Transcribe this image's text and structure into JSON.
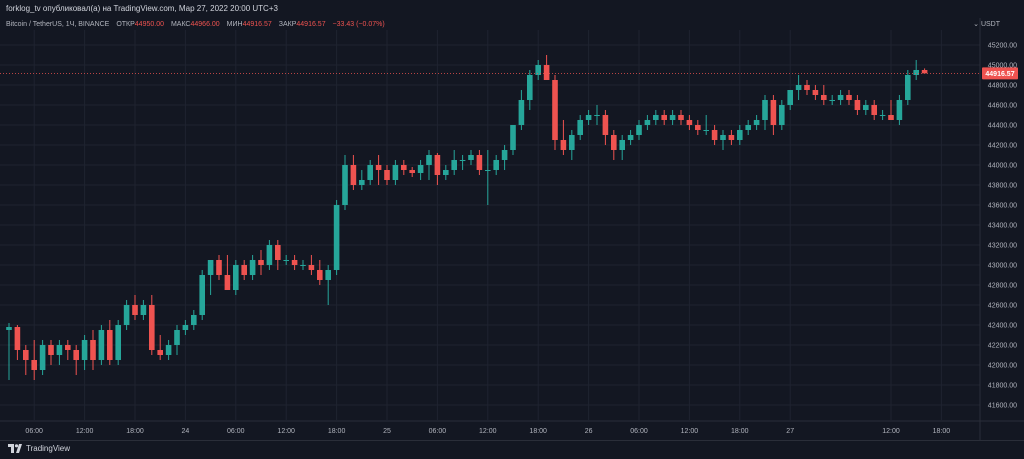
{
  "header": {
    "credit": "forklog_tv опубликовал(а) на TradingView.com, Мар 27, 2022 20:00 UTC+3",
    "symbol": "Bitcoin / TetherUS, 1Ч, BINANCE",
    "open_label": "ОТКР",
    "open_value": "44950.00",
    "high_label": "МАКС",
    "high_value": "44966.00",
    "low_label": "МИН",
    "low_value": "44916.57",
    "close_label": "ЗАКР",
    "close_value": "44916.57",
    "change": "−33.43 (−0.07%)"
  },
  "currency": "USDT",
  "brand": "TradingView",
  "colors": {
    "up": "#26a69a",
    "down": "#ef5350",
    "background": "#131722",
    "grid": "#1f2330",
    "text": "#b2b5be"
  },
  "chart_data": {
    "type": "candlestick",
    "symbol": "Bitcoin / TetherUS",
    "interval": "1Ч",
    "exchange": "BINANCE",
    "ylim": [
      41400,
      45300
    ],
    "y_ticks": [
      41600,
      41800,
      42000,
      42200,
      42400,
      42600,
      42800,
      43000,
      43200,
      43400,
      43600,
      43800,
      44000,
      44200,
      44400,
      44600,
      44800,
      45000,
      45200
    ],
    "y_tick_labels": [
      "41600.00",
      "41800.00",
      "42000.00",
      "42200.00",
      "42400.00",
      "42600.00",
      "42800.00",
      "43000.00",
      "43200.00",
      "43400.00",
      "43600.00",
      "43800.00",
      "44000.00",
      "44200.00",
      "44400.00",
      "44600.00",
      "44800.00",
      "45000.00",
      "45200.00"
    ],
    "x_ticks": [
      {
        "index": 3,
        "label": "06:00"
      },
      {
        "index": 9,
        "label": "12:00"
      },
      {
        "index": 15,
        "label": "18:00"
      },
      {
        "index": 21,
        "label": "24"
      },
      {
        "index": 27,
        "label": "06:00"
      },
      {
        "index": 33,
        "label": "12:00"
      },
      {
        "index": 39,
        "label": "18:00"
      },
      {
        "index": 45,
        "label": "25"
      },
      {
        "index": 51,
        "label": "06:00"
      },
      {
        "index": 57,
        "label": "12:00"
      },
      {
        "index": 63,
        "label": "18:00"
      },
      {
        "index": 69,
        "label": "26"
      },
      {
        "index": 75,
        "label": "06:00"
      },
      {
        "index": 81,
        "label": "12:00"
      },
      {
        "index": 87,
        "label": "18:00"
      },
      {
        "index": 93,
        "label": "27"
      },
      {
        "index": 105,
        "label": "12:00"
      },
      {
        "index": 111,
        "label": "18:00"
      }
    ],
    "last_price": 44916.57,
    "last_price_label": "44916.57",
    "candles": [
      [
        42350,
        42420,
        41850,
        42380
      ],
      [
        42380,
        42400,
        42050,
        42150
      ],
      [
        42150,
        42200,
        41900,
        42050
      ],
      [
        42050,
        42250,
        41850,
        41950
      ],
      [
        41950,
        42250,
        41900,
        42200
      ],
      [
        42200,
        42250,
        42000,
        42100
      ],
      [
        42100,
        42250,
        42000,
        42200
      ],
      [
        42200,
        42250,
        42050,
        42150
      ],
      [
        42150,
        42200,
        41900,
        42050
      ],
      [
        42050,
        42300,
        41950,
        42250
      ],
      [
        42250,
        42350,
        41950,
        42050
      ],
      [
        42050,
        42400,
        42000,
        42350
      ],
      [
        42350,
        42450,
        42000,
        42050
      ],
      [
        42050,
        42450,
        42000,
        42400
      ],
      [
        42400,
        42650,
        42350,
        42600
      ],
      [
        42600,
        42700,
        42450,
        42500
      ],
      [
        42500,
        42650,
        42450,
        42600
      ],
      [
        42600,
        42700,
        42100,
        42150
      ],
      [
        42150,
        42300,
        42050,
        42100
      ],
      [
        42100,
        42250,
        42050,
        42200
      ],
      [
        42200,
        42400,
        42100,
        42350
      ],
      [
        42350,
        42450,
        42300,
        42400
      ],
      [
        42400,
        42550,
        42350,
        42500
      ],
      [
        42500,
        42950,
        42450,
        42900
      ],
      [
        42900,
        43050,
        42700,
        43050
      ],
      [
        43050,
        43100,
        42850,
        42900
      ],
      [
        42900,
        43100,
        42750,
        42750
      ],
      [
        42750,
        43050,
        42700,
        43000
      ],
      [
        43000,
        43050,
        42850,
        42900
      ],
      [
        42900,
        43100,
        42850,
        43050
      ],
      [
        43050,
        43150,
        42900,
        43000
      ],
      [
        43000,
        43250,
        42950,
        43200
      ],
      [
        43200,
        43250,
        42950,
        43050
      ],
      [
        43050,
        43100,
        43000,
        43050
      ],
      [
        43050,
        43100,
        42950,
        43000
      ],
      [
        43000,
        43050,
        42950,
        43000
      ],
      [
        43000,
        43100,
        42900,
        42950
      ],
      [
        42950,
        43050,
        42800,
        42850
      ],
      [
        42850,
        43000,
        42600,
        42950
      ],
      [
        42950,
        43650,
        42900,
        43600
      ],
      [
        43600,
        44100,
        43550,
        44000
      ],
      [
        44000,
        44100,
        43750,
        43800
      ],
      [
        43800,
        43950,
        43750,
        43850
      ],
      [
        43850,
        44050,
        43800,
        44000
      ],
      [
        44000,
        44100,
        43800,
        43950
      ],
      [
        43950,
        44000,
        43800,
        43850
      ],
      [
        43850,
        44050,
        43800,
        44000
      ],
      [
        44000,
        44050,
        43900,
        43950
      ],
      [
        43950,
        43980,
        43880,
        43920
      ],
      [
        43920,
        44050,
        43850,
        44000
      ],
      [
        44000,
        44150,
        43850,
        44100
      ],
      [
        44100,
        44120,
        43800,
        43900
      ],
      [
        43900,
        44000,
        43850,
        43950
      ],
      [
        43950,
        44150,
        43900,
        44050
      ],
      [
        44050,
        44100,
        43950,
        44050
      ],
      [
        44050,
        44150,
        44000,
        44100
      ],
      [
        44100,
        44150,
        43900,
        43950
      ],
      [
        43950,
        44150,
        43600,
        43950
      ],
      [
        43950,
        44100,
        43900,
        44050
      ],
      [
        44050,
        44200,
        43950,
        44150
      ],
      [
        44150,
        44400,
        44100,
        44400
      ],
      [
        44400,
        44750,
        44350,
        44650
      ],
      [
        44650,
        44950,
        44550,
        44900
      ],
      [
        44900,
        45050,
        44850,
        45000
      ],
      [
        45000,
        45100,
        44850,
        44850
      ],
      [
        44850,
        44900,
        44150,
        44250
      ],
      [
        44250,
        44450,
        44100,
        44150
      ],
      [
        44150,
        44350,
        44050,
        44300
      ],
      [
        44300,
        44500,
        44250,
        44450
      ],
      [
        44450,
        44550,
        44400,
        44500
      ],
      [
        44500,
        44600,
        44400,
        44500
      ],
      [
        44500,
        44550,
        44200,
        44300
      ],
      [
        44300,
        44350,
        44050,
        44150
      ],
      [
        44150,
        44300,
        44050,
        44250
      ],
      [
        44250,
        44350,
        44200,
        44300
      ],
      [
        44300,
        44450,
        44250,
        44400
      ],
      [
        44400,
        44500,
        44350,
        44450
      ],
      [
        44450,
        44550,
        44400,
        44500
      ],
      [
        44500,
        44550,
        44400,
        44450
      ],
      [
        44450,
        44550,
        44400,
        44500
      ],
      [
        44500,
        44550,
        44400,
        44450
      ],
      [
        44450,
        44500,
        44350,
        44400
      ],
      [
        44400,
        44450,
        44300,
        44350
      ],
      [
        44350,
        44500,
        44300,
        44350
      ],
      [
        44350,
        44400,
        44200,
        44250
      ],
      [
        44250,
        44350,
        44150,
        44300
      ],
      [
        44300,
        44350,
        44200,
        44250
      ],
      [
        44250,
        44400,
        44200,
        44350
      ],
      [
        44350,
        44450,
        44300,
        44400
      ],
      [
        44400,
        44500,
        44350,
        44450
      ],
      [
        44450,
        44700,
        44350,
        44650
      ],
      [
        44650,
        44700,
        44300,
        44400
      ],
      [
        44400,
        44650,
        44350,
        44600
      ],
      [
        44600,
        44750,
        44550,
        44750
      ],
      [
        44750,
        44900,
        44650,
        44800
      ],
      [
        44800,
        44850,
        44700,
        44750
      ],
      [
        44750,
        44800,
        44650,
        44700
      ],
      [
        44700,
        44800,
        44600,
        44650
      ],
      [
        44650,
        44700,
        44600,
        44650
      ],
      [
        44650,
        44750,
        44600,
        44700
      ],
      [
        44700,
        44750,
        44600,
        44650
      ],
      [
        44650,
        44700,
        44500,
        44550
      ],
      [
        44550,
        44650,
        44500,
        44600
      ],
      [
        44600,
        44650,
        44450,
        44500
      ],
      [
        44500,
        44550,
        44450,
        44500
      ],
      [
        44500,
        44650,
        44450,
        44450
      ],
      [
        44450,
        44700,
        44400,
        44650
      ],
      [
        44650,
        44950,
        44600,
        44900
      ],
      [
        44900,
        45050,
        44850,
        44950
      ],
      [
        44950,
        44966,
        44916.57,
        44916.57
      ]
    ]
  }
}
